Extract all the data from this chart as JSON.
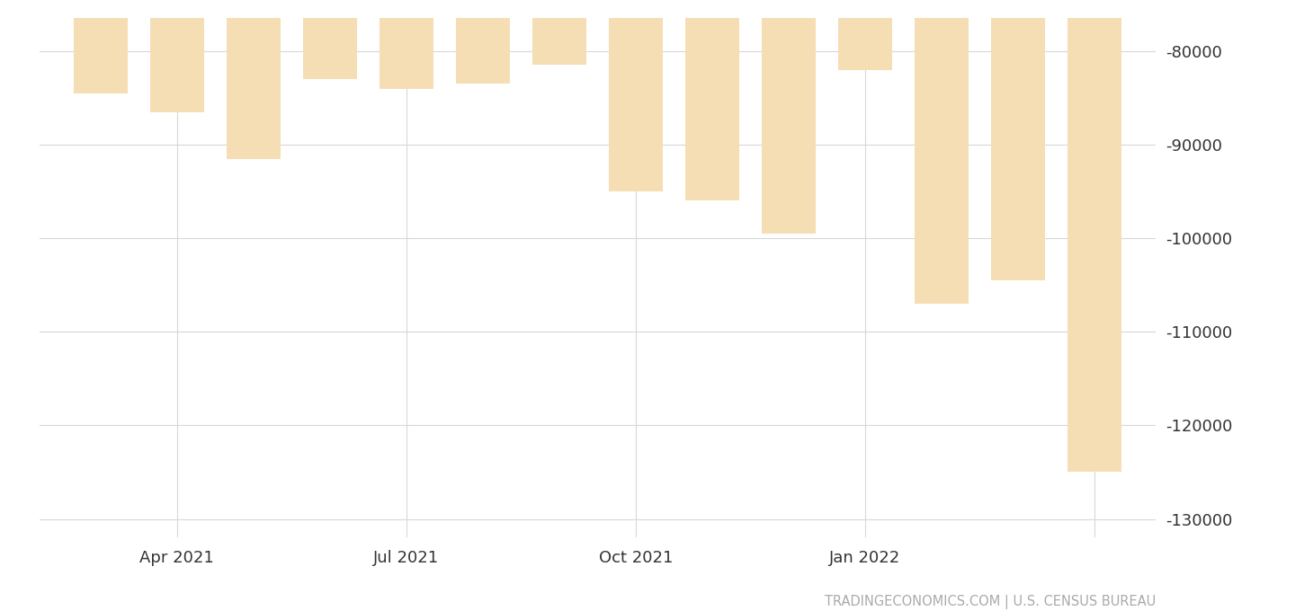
{
  "bar_color": "#f5deb3",
  "background_color": "#ffffff",
  "grid_color": "#d8d8d8",
  "text_color": "#333333",
  "watermark": "TRADINGECONOMICS.COM | U.S. CENSUS BUREAU",
  "ylim": [
    -132000,
    -76500
  ],
  "yticks": [
    -130000,
    -120000,
    -110000,
    -100000,
    -90000,
    -80000
  ],
  "values": [
    -84500,
    -86500,
    -91500,
    -83000,
    -84000,
    -83500,
    -81500,
    -95000,
    -96000,
    -99500,
    -82000,
    -107000,
    -104500,
    -125000
  ],
  "n_bars": 14,
  "xtick_bar_indices": [
    1,
    4,
    7,
    10,
    13
  ],
  "xtick_labels": [
    "Apr 2021",
    "Jul 2021",
    "Oct 2021",
    "Jan 2022",
    ""
  ]
}
